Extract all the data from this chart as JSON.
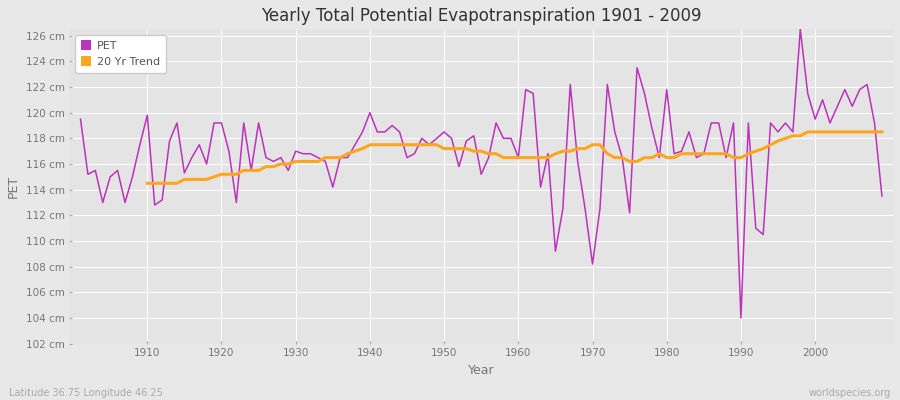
{
  "title": "Yearly Total Potential Evapotranspiration 1901 - 2009",
  "ylabel": "PET",
  "xlabel": "Year",
  "footnote_left": "Latitude 36.75 Longitude 46.25",
  "footnote_right": "worldspecies.org",
  "ylim": [
    102,
    126.5
  ],
  "yticks": [
    102,
    104,
    106,
    108,
    110,
    112,
    114,
    116,
    118,
    120,
    122,
    124,
    126
  ],
  "background_color": "#e8e8e8",
  "plot_bg_color": "#e4e4e4",
  "grid_color": "#ffffff",
  "pet_color": "#bb33bb",
  "trend_color": "#ffa520",
  "years": [
    1901,
    1902,
    1903,
    1904,
    1905,
    1906,
    1907,
    1908,
    1909,
    1910,
    1911,
    1912,
    1913,
    1914,
    1915,
    1916,
    1917,
    1918,
    1919,
    1920,
    1921,
    1922,
    1923,
    1924,
    1925,
    1926,
    1927,
    1928,
    1929,
    1930,
    1931,
    1932,
    1933,
    1934,
    1935,
    1936,
    1937,
    1938,
    1939,
    1940,
    1941,
    1942,
    1943,
    1944,
    1945,
    1946,
    1947,
    1948,
    1949,
    1950,
    1951,
    1952,
    1953,
    1954,
    1955,
    1956,
    1957,
    1958,
    1959,
    1960,
    1961,
    1962,
    1963,
    1964,
    1965,
    1966,
    1967,
    1968,
    1969,
    1970,
    1971,
    1972,
    1973,
    1974,
    1975,
    1976,
    1977,
    1978,
    1979,
    1980,
    1981,
    1982,
    1983,
    1984,
    1985,
    1986,
    1987,
    1988,
    1989,
    1990,
    1991,
    1992,
    1993,
    1994,
    1995,
    1996,
    1997,
    1998,
    1999,
    2000,
    2001,
    2002,
    2003,
    2004,
    2005,
    2006,
    2007,
    2008,
    2009
  ],
  "pet_values": [
    119.5,
    115.2,
    115.5,
    113.0,
    115.0,
    115.5,
    113.0,
    115.0,
    117.5,
    119.8,
    112.8,
    113.2,
    117.8,
    119.2,
    115.3,
    116.5,
    117.5,
    116.0,
    119.2,
    119.2,
    117.0,
    113.0,
    119.2,
    115.5,
    119.2,
    116.5,
    116.2,
    116.5,
    115.5,
    117.0,
    116.8,
    116.8,
    116.5,
    116.2,
    114.2,
    116.5,
    116.5,
    117.5,
    118.5,
    120.0,
    118.5,
    118.5,
    119.0,
    118.5,
    116.5,
    116.8,
    118.0,
    117.5,
    118.0,
    118.5,
    118.0,
    115.8,
    117.8,
    118.2,
    115.2,
    116.5,
    119.2,
    118.0,
    118.0,
    116.5,
    121.8,
    121.5,
    114.2,
    116.8,
    109.2,
    112.5,
    122.2,
    116.2,
    112.5,
    108.2,
    112.5,
    122.2,
    118.5,
    116.5,
    112.2,
    123.5,
    121.5,
    118.8,
    116.5,
    121.8,
    116.8,
    117.0,
    118.5,
    116.5,
    116.8,
    119.2,
    119.2,
    116.5,
    119.2,
    104.0,
    119.2,
    111.0,
    110.5,
    119.2,
    118.5,
    119.2,
    118.5,
    126.5,
    121.5,
    119.5,
    121.0,
    119.2,
    120.5,
    121.8,
    120.5,
    121.8,
    122.2,
    119.2,
    113.5
  ],
  "trend_years": [
    1910,
    1911,
    1912,
    1913,
    1914,
    1915,
    1916,
    1917,
    1918,
    1919,
    1920,
    1921,
    1922,
    1923,
    1924,
    1925,
    1926,
    1927,
    1928,
    1929,
    1930,
    1931,
    1932,
    1933,
    1934,
    1935,
    1936,
    1937,
    1938,
    1939,
    1940,
    1941,
    1942,
    1943,
    1944,
    1945,
    1946,
    1947,
    1948,
    1949,
    1950,
    1951,
    1952,
    1953,
    1954,
    1955,
    1956,
    1957,
    1958,
    1959,
    1960,
    1961,
    1962,
    1963,
    1964,
    1965,
    1966,
    1967,
    1968,
    1969,
    1970,
    1971,
    1972,
    1973,
    1974,
    1975,
    1976,
    1977,
    1978,
    1979,
    1980,
    1981,
    1982,
    1983,
    1984,
    1985,
    1986,
    1987,
    1988,
    1989,
    1990,
    1991,
    1992,
    1993,
    1994,
    1995,
    1996,
    1997,
    1998,
    1999,
    2000,
    2001,
    2002,
    2003,
    2004,
    2005,
    2006,
    2007,
    2008,
    2009
  ],
  "trend_values": [
    114.5,
    114.5,
    114.5,
    114.5,
    114.5,
    114.8,
    114.8,
    114.8,
    114.8,
    115.0,
    115.2,
    115.2,
    115.2,
    115.5,
    115.5,
    115.5,
    115.8,
    115.8,
    116.0,
    116.0,
    116.2,
    116.2,
    116.2,
    116.2,
    116.5,
    116.5,
    116.5,
    116.8,
    117.0,
    117.2,
    117.5,
    117.5,
    117.5,
    117.5,
    117.5,
    117.5,
    117.5,
    117.5,
    117.5,
    117.5,
    117.2,
    117.2,
    117.2,
    117.2,
    117.0,
    117.0,
    116.8,
    116.8,
    116.5,
    116.5,
    116.5,
    116.5,
    116.5,
    116.5,
    116.5,
    116.8,
    117.0,
    117.0,
    117.2,
    117.2,
    117.5,
    117.5,
    116.8,
    116.5,
    116.5,
    116.2,
    116.2,
    116.5,
    116.5,
    116.8,
    116.5,
    116.5,
    116.8,
    116.8,
    116.8,
    116.8,
    116.8,
    116.8,
    116.8,
    116.5,
    116.5,
    116.8,
    117.0,
    117.2,
    117.5,
    117.8,
    118.0,
    118.2,
    118.2,
    118.5,
    118.5,
    118.5,
    118.5,
    118.5,
    118.5,
    118.5,
    118.5,
    118.5,
    118.5,
    118.5
  ]
}
